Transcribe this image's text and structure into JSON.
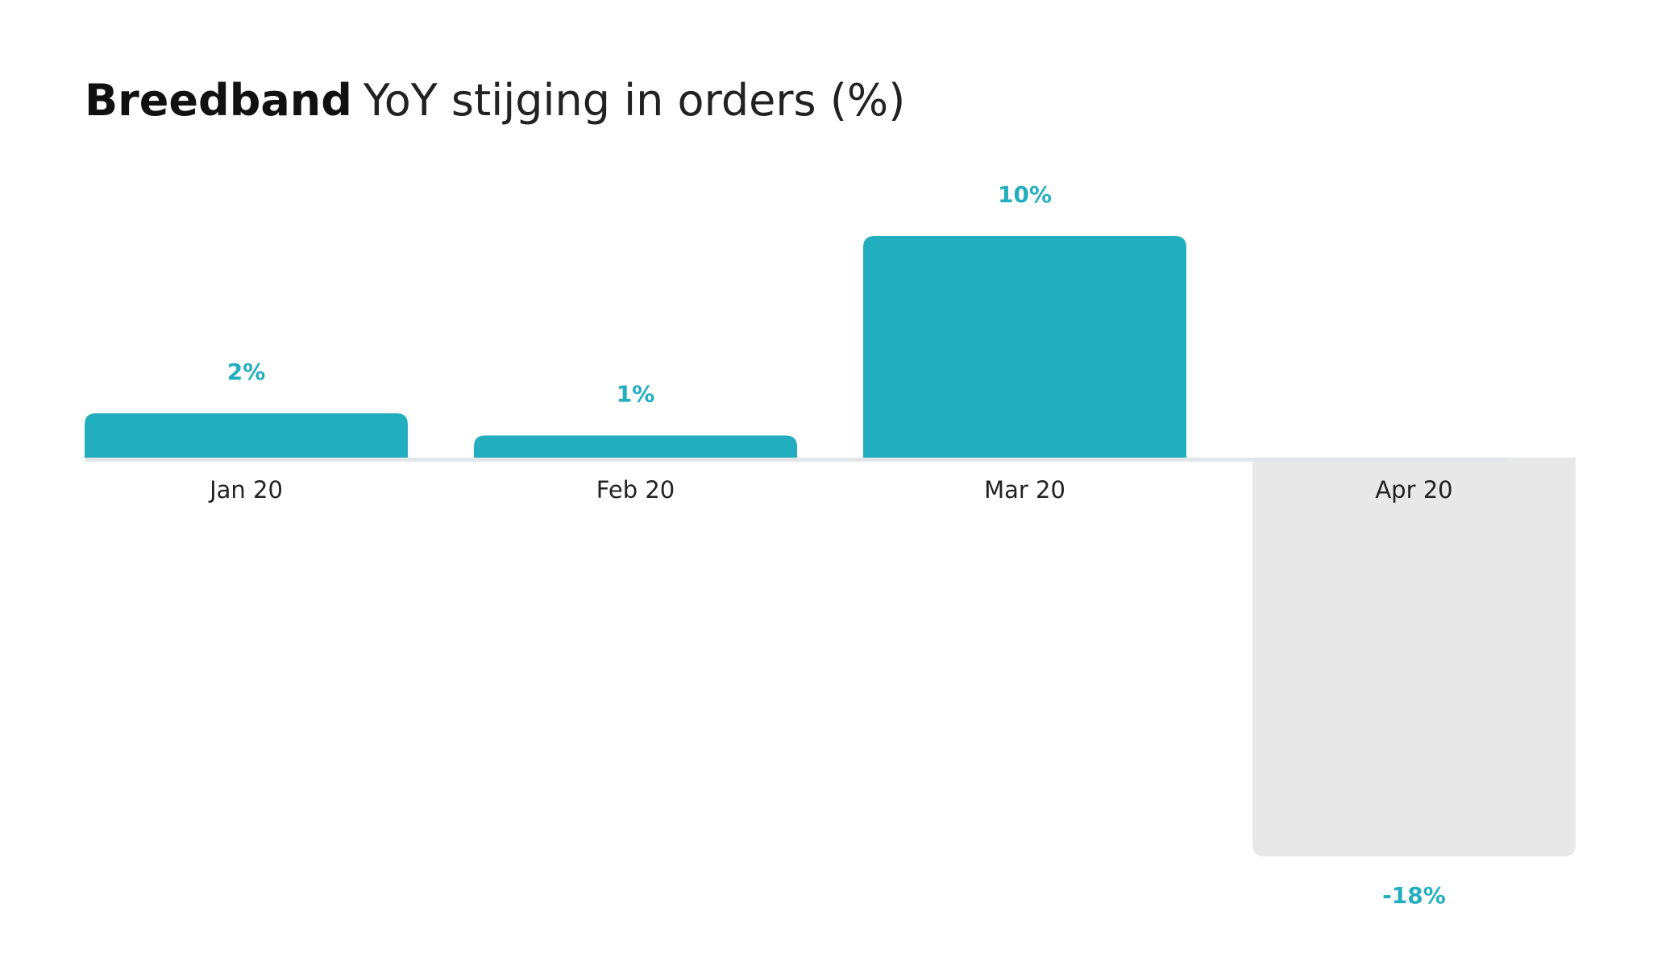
{
  "chart_data": {
    "type": "bar",
    "title_bold": "Breedband",
    "title": "YoY stijging in orders (%)",
    "categories": [
      "Jan 20",
      "Feb 20",
      "Mar 20",
      "Apr 20"
    ],
    "values": [
      2,
      1,
      10,
      -18
    ],
    "value_labels": [
      "2%",
      "1%",
      "10%",
      "-18%"
    ],
    "colors": [
      "#22aebe",
      "#22aebe",
      "#22aebe",
      "#e8e8e8"
    ],
    "label_color": "#22aebe",
    "ylim": [
      -20,
      12
    ],
    "grid": false
  }
}
